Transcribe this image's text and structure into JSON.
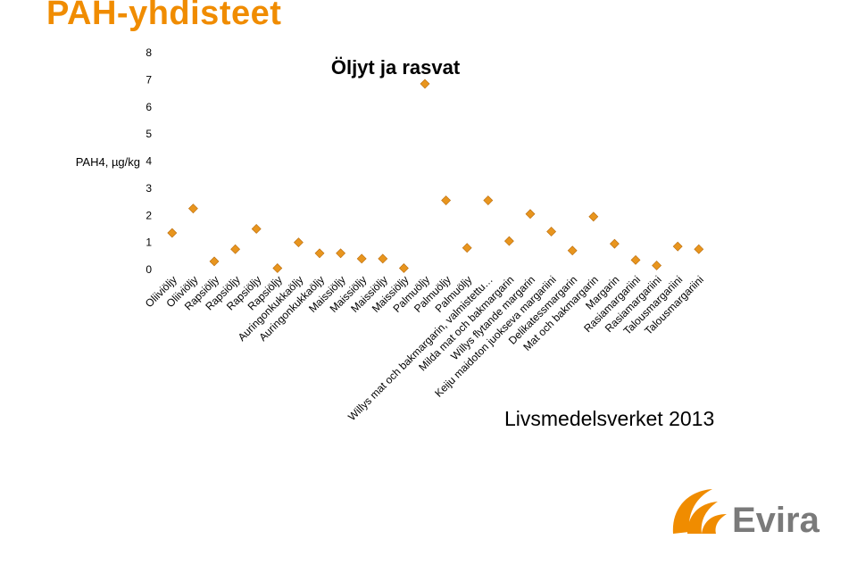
{
  "slide": {
    "title": "PAH-yhdisteet",
    "source": "Livsmedelsverket 2013"
  },
  "logo": {
    "text": "Evira"
  },
  "colors": {
    "accent": "#f08c00",
    "marker": "#e8951e",
    "marker_stroke": "#b86a0a",
    "logo_grey": "#7a7a7a"
  },
  "chart_data": {
    "type": "scatter",
    "title": "Öljyt ja rasvat",
    "ylabel": "PAH4, µg/kg",
    "xlabel": "",
    "ylim": [
      0,
      8
    ],
    "yticks": [
      0,
      1,
      2,
      3,
      4,
      5,
      6,
      7,
      8
    ],
    "grid": false,
    "legend": "none",
    "marker": "diamond",
    "categories": [
      "Oliiviöljy",
      "Oliiviöljy",
      "Rapsiöljy",
      "Rapsiöljy",
      "Rapsiöljy",
      "Rapsiöljy",
      "Auringonkukkaöljy",
      "Auringonkukkaöljy",
      "Maissiöljy",
      "Maissiöljy",
      "Maissiöljy",
      "Maissiöljy",
      "Palmuöljy",
      "Palmuöljy",
      "Palmuöljy",
      "Willys mat och bakmargarin, valmistettu…",
      "Milda mat och bakmargarin",
      "Willys flytande margarin",
      "Keiju maidoton juokseva margariini",
      "Delikatessmargarin",
      "Mat och bakmargarin",
      "Margarin",
      "Rasiamargariini",
      "Rasiamargariini",
      "Talousmargariini",
      "Talousmargariini"
    ],
    "values": [
      1.35,
      2.25,
      0.3,
      0.75,
      1.5,
      0.05,
      1.0,
      0.6,
      0.6,
      0.4,
      0.4,
      0.05,
      6.85,
      2.55,
      0.8,
      2.55,
      1.05,
      2.05,
      1.4,
      0.7,
      1.95,
      0.95,
      0.35,
      0.15,
      0.85,
      0.75
    ]
  }
}
